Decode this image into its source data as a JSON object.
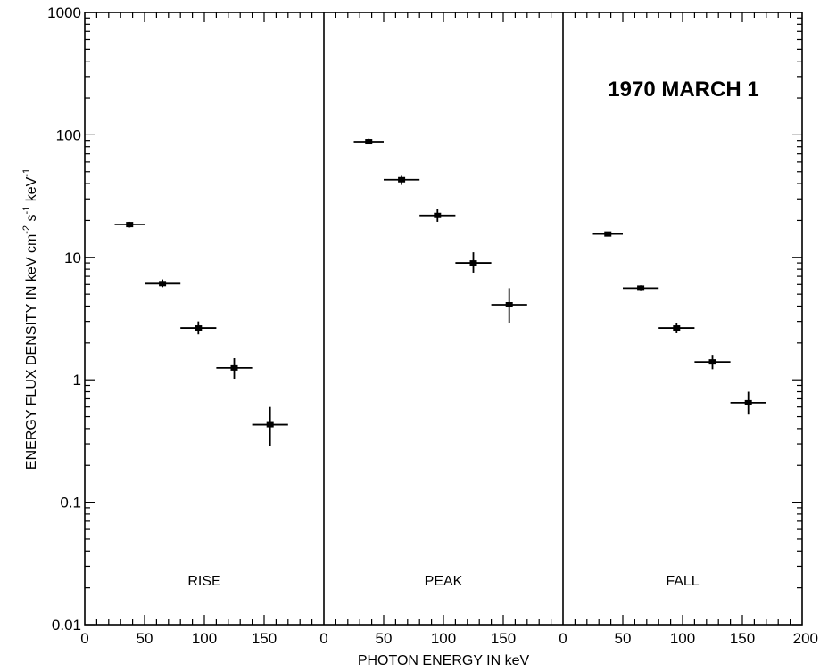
{
  "chart_data": {
    "type": "scatter",
    "title": "1970 MARCH 1",
    "xlabel": "PHOTON ENERGY IN keV",
    "ylabel": "ENERGY FLUX DENSITY IN keV cm-2 s-1 keV-1",
    "y_scale": "log",
    "ylim": [
      0.01,
      1000
    ],
    "y_ticks": [
      "0.01",
      "0.1",
      "1",
      "10",
      "100",
      "1000"
    ],
    "panels": [
      {
        "name": "RISE",
        "xlim": [
          0,
          200
        ],
        "x_ticks": [
          "0",
          "50",
          "100",
          "150"
        ],
        "points": [
          {
            "x": 37.5,
            "y": 18.5,
            "xerr": 12.5,
            "ylo": 17.5,
            "yhi": 19.5
          },
          {
            "x": 65,
            "y": 6.1,
            "xerr": 15,
            "ylo": 5.7,
            "yhi": 6.6
          },
          {
            "x": 95,
            "y": 2.65,
            "xerr": 15,
            "ylo": 2.35,
            "yhi": 3.0
          },
          {
            "x": 125,
            "y": 1.25,
            "xerr": 15,
            "ylo": 1.02,
            "yhi": 1.5
          },
          {
            "x": 155,
            "y": 0.43,
            "xerr": 15,
            "ylo": 0.29,
            "yhi": 0.6
          }
        ]
      },
      {
        "name": "PEAK",
        "xlim": [
          0,
          200
        ],
        "x_ticks": [
          "0",
          "50",
          "100",
          "150"
        ],
        "points": [
          {
            "x": 37.5,
            "y": 88,
            "xerr": 12.5,
            "ylo": 84,
            "yhi": 93
          },
          {
            "x": 65,
            "y": 43,
            "xerr": 15,
            "ylo": 39,
            "yhi": 47
          },
          {
            "x": 95,
            "y": 22,
            "xerr": 15,
            "ylo": 19.5,
            "yhi": 25
          },
          {
            "x": 125,
            "y": 9.0,
            "xerr": 15,
            "ylo": 7.5,
            "yhi": 11
          },
          {
            "x": 155,
            "y": 4.1,
            "xerr": 15,
            "ylo": 2.9,
            "yhi": 5.6
          }
        ]
      },
      {
        "name": "FALL",
        "xlim": [
          0,
          200
        ],
        "x_ticks": [
          "0",
          "50",
          "100",
          "150",
          "200"
        ],
        "points": [
          {
            "x": 37.5,
            "y": 15.5,
            "xerr": 12.5,
            "ylo": 15.0,
            "yhi": 16.0
          },
          {
            "x": 65,
            "y": 5.6,
            "xerr": 15,
            "ylo": 5.3,
            "yhi": 5.9
          },
          {
            "x": 95,
            "y": 2.65,
            "xerr": 15,
            "ylo": 2.4,
            "yhi": 2.9
          },
          {
            "x": 125,
            "y": 1.4,
            "xerr": 15,
            "ylo": 1.22,
            "yhi": 1.6
          },
          {
            "x": 155,
            "y": 0.65,
            "xerr": 15,
            "ylo": 0.52,
            "yhi": 0.8
          }
        ]
      }
    ]
  }
}
